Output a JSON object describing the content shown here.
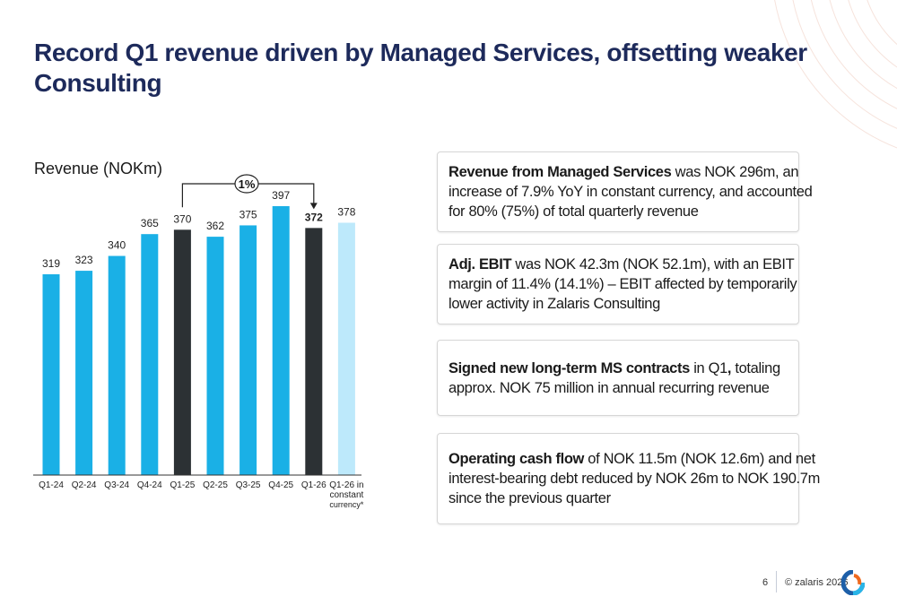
{
  "title": "Record Q1 revenue driven by Managed Services, offsetting weaker Consulting",
  "chart_data": {
    "type": "bar",
    "title": "Revenue (NOKm)",
    "categories": [
      "Q1-24",
      "Q2-24",
      "Q3-24",
      "Q4-24",
      "Q1-25",
      "Q2-25",
      "Q3-25",
      "Q4-25",
      "Q1-26",
      "Q1-26 in constant currency*"
    ],
    "values": [
      319,
      323,
      340,
      365,
      370,
      362,
      375,
      397,
      372,
      378
    ],
    "bar_colors": [
      "#1ab0e6",
      "#1ab0e6",
      "#1ab0e6",
      "#1ab0e6",
      "#2c3134",
      "#1ab0e6",
      "#1ab0e6",
      "#1ab0e6",
      "#2c3134",
      "#bde9fb"
    ],
    "bold_labels": [
      "Q1-26"
    ],
    "annotation": {
      "from": "Q1-25",
      "to": "Q1-26",
      "label": "1%"
    },
    "grid": false
  },
  "boxes": [
    {
      "lines": [
        [
          {
            "b": "Revenue from Managed Services"
          },
          {
            "t": " was NOK 296m, an"
          }
        ],
        [
          {
            "t": "increase of 7.9% YoY in constant currency, and accounted"
          }
        ],
        [
          {
            "t": "for 80% (75%) of total quarterly revenue"
          }
        ]
      ]
    },
    {
      "lines": [
        [
          {
            "b": "Adj. EBIT"
          },
          {
            "t": " was NOK 42.3m (NOK 52.1m), with an EBIT"
          }
        ],
        [
          {
            "t": "margin of 11.4% (14.1%) – EBIT affected by temporarily"
          }
        ],
        [
          {
            "t": "lower activity in Zalaris Consulting"
          }
        ]
      ]
    },
    {
      "lines": [
        [
          {
            "b": "Signed new long-term MS contracts"
          },
          {
            "t": " in Q1"
          },
          {
            "b": ","
          },
          {
            "t": " totaling"
          }
        ],
        [
          {
            "t": "approx. NOK 75 million in annual recurring revenue"
          }
        ]
      ]
    },
    {
      "lines": [
        [
          {
            "b": "Operating cash flow"
          },
          {
            "t": " of NOK 11.5m (NOK 12.6m) and net"
          }
        ],
        [
          {
            "t": "interest-bearing debt reduced by NOK 26m to NOK 190.7m"
          }
        ],
        [
          {
            "t": "since the previous quarter"
          }
        ]
      ]
    }
  ],
  "footer": {
    "page": "6",
    "copyright": "© zalaris 2026",
    "logo": "zalaris-logo"
  }
}
